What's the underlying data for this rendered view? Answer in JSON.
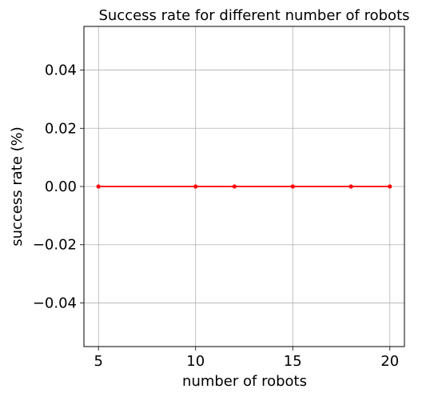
{
  "chart_data": {
    "type": "line",
    "title": "Success rate for different number of robots",
    "xlabel": "number of robots",
    "ylabel": "success rate (%)",
    "x": [
      5,
      10,
      12,
      15,
      18,
      20
    ],
    "series": [
      {
        "values": [
          0,
          0,
          0,
          0,
          0,
          0
        ],
        "color": "#ff0000",
        "marker": "circle"
      }
    ],
    "xlim": [
      4.25,
      20.75
    ],
    "ylim": [
      -0.055,
      0.055
    ],
    "xticks": [
      5,
      10,
      15,
      20
    ],
    "xtick_labels": [
      "5",
      "10",
      "15",
      "20"
    ],
    "yticks": [
      -0.04,
      -0.02,
      0.0,
      0.02,
      0.04
    ],
    "ytick_labels": [
      "−0.04",
      "−0.02",
      "0.00",
      "0.02",
      "0.04"
    ],
    "grid": true,
    "legend": "none"
  }
}
